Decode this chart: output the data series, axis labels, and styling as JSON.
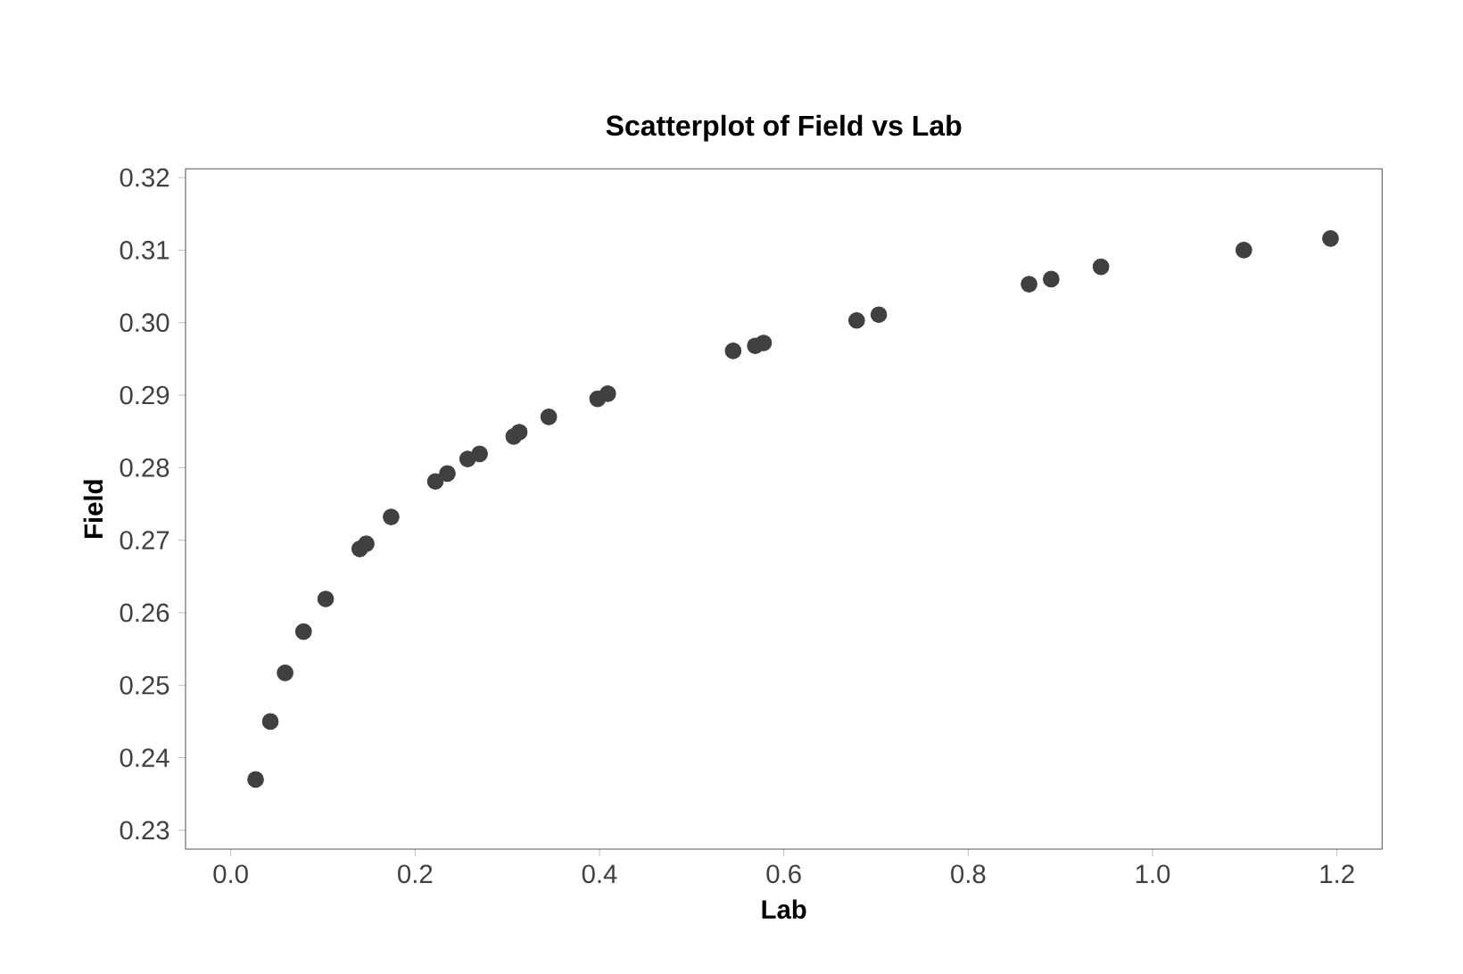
{
  "chart_data": {
    "type": "scatter",
    "title": "Scatterplot of Field vs Lab",
    "xlabel": "Lab",
    "ylabel": "Field",
    "x": [
      0.027,
      0.043,
      0.059,
      0.079,
      0.103,
      0.14,
      0.147,
      0.174,
      0.222,
      0.235,
      0.257,
      0.27,
      0.307,
      0.313,
      0.345,
      0.398,
      0.409,
      0.545,
      0.569,
      0.578,
      0.679,
      0.703,
      0.866,
      0.89,
      0.944,
      1.099,
      1.193
    ],
    "values": [
      0.237,
      0.245,
      0.2517,
      0.2574,
      0.2619,
      0.2688,
      0.2695,
      0.2732,
      0.2781,
      0.2792,
      0.2812,
      0.2819,
      0.2843,
      0.2849,
      0.287,
      0.2895,
      0.2902,
      0.2961,
      0.2968,
      0.2972,
      0.3003,
      0.3011,
      0.3053,
      0.306,
      0.3077,
      0.31,
      0.3116
    ],
    "color": "#404040",
    "marker": "circle",
    "xlim": [
      -0.049,
      1.249
    ],
    "ylim": [
      0.2274,
      0.3212
    ],
    "xticks": [
      {
        "value": 0,
        "label": "0.0"
      },
      0.2,
      0.4,
      0.6,
      0.8,
      {
        "value": 1,
        "label": "1.0"
      },
      1.2
    ],
    "yticks": [
      0.23,
      0.24,
      0.25,
      0.26,
      0.27,
      0.28,
      0.29,
      {
        "value": 0.3,
        "label": "0.30"
      },
      0.31,
      0.32
    ]
  }
}
